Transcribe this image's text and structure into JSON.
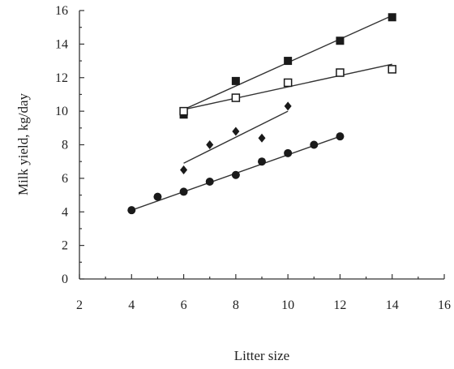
{
  "chart_data": {
    "type": "scatter",
    "title": "",
    "xlabel": "Litter size",
    "ylabel": "Milk yield, kg/day",
    "xlim": [
      2,
      16
    ],
    "ylim": [
      0,
      16
    ],
    "xticks": [
      2,
      4,
      6,
      8,
      10,
      12,
      14,
      16
    ],
    "yticks": [
      0,
      2,
      4,
      6,
      8,
      10,
      12,
      14,
      16
    ],
    "grid": false,
    "legend": "none",
    "series": [
      {
        "marker": "filled-square",
        "x": [
          6,
          8,
          10,
          12,
          14
        ],
        "y": [
          9.8,
          11.8,
          13.0,
          14.2,
          15.6
        ],
        "fit": {
          "x": [
            6,
            14
          ],
          "y": [
            10.1,
            15.7
          ]
        }
      },
      {
        "marker": "open-square",
        "x": [
          6,
          8,
          10,
          12,
          14
        ],
        "y": [
          10.0,
          10.8,
          11.7,
          12.3,
          12.5
        ],
        "fit": {
          "x": [
            6,
            14
          ],
          "y": [
            10.1,
            12.8
          ]
        }
      },
      {
        "marker": "diamond",
        "x": [
          6,
          7,
          8,
          9,
          10
        ],
        "y": [
          6.5,
          8.0,
          8.8,
          8.4,
          10.3
        ],
        "fit": {
          "x": [
            6,
            10
          ],
          "y": [
            6.9,
            10.0
          ]
        }
      },
      {
        "marker": "circle",
        "x": [
          4,
          5,
          6,
          7,
          8,
          9,
          10,
          11,
          12
        ],
        "y": [
          4.1,
          4.9,
          5.2,
          5.8,
          6.2,
          7.0,
          7.5,
          8.0,
          8.5
        ],
        "fit": {
          "x": [
            4,
            12
          ],
          "y": [
            4.1,
            8.5
          ]
        }
      }
    ]
  }
}
